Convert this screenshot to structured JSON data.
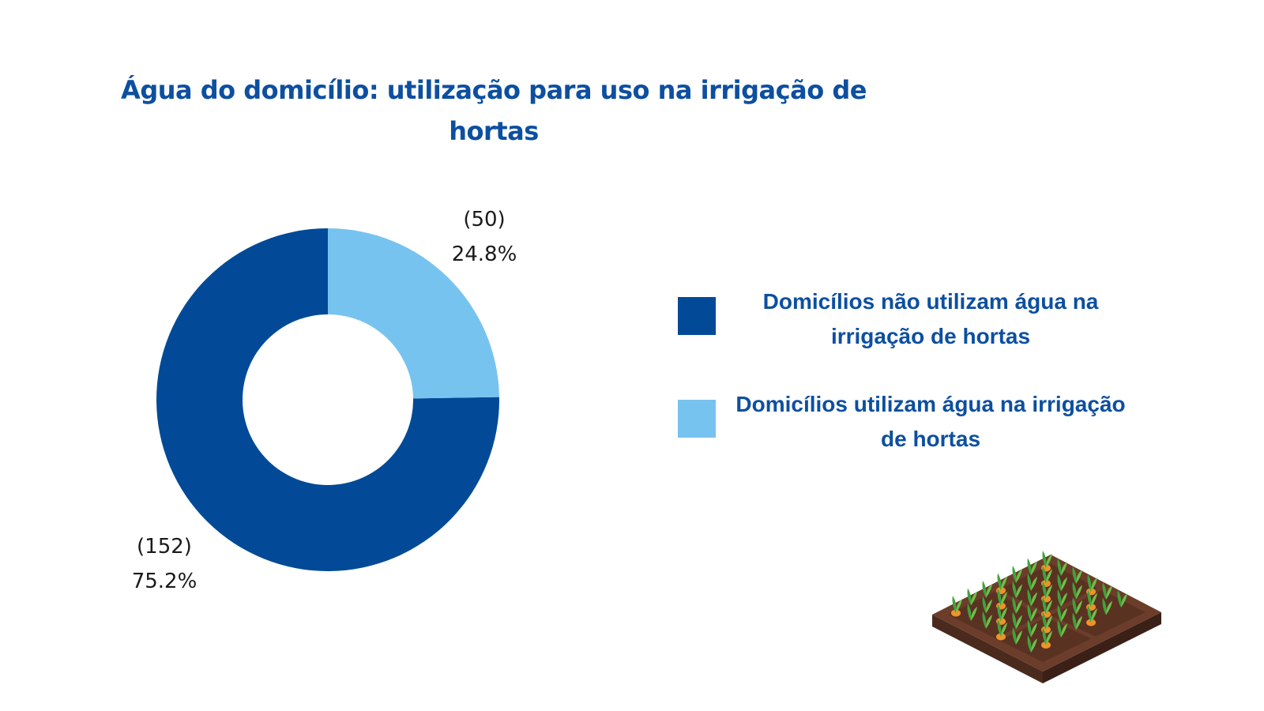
{
  "chart_data": {
    "type": "pie",
    "title": "Água do domicílio: utilização para uso na irrigação de hortas",
    "donut": true,
    "categories": [
      "Domicílios não utilizam água na irrigação de hortas",
      "Domicílios utilizam água na irrigação de hortas"
    ],
    "values": [
      152,
      50
    ],
    "value_labels": [
      "(152)",
      "(50)"
    ],
    "percent_labels": [
      "75.2%",
      "24.8%"
    ],
    "colors": [
      "#024a97",
      "#77c3ef"
    ],
    "legend_position": "right"
  },
  "decoration": {
    "icon": "vegetable-garden-plot-icon"
  }
}
